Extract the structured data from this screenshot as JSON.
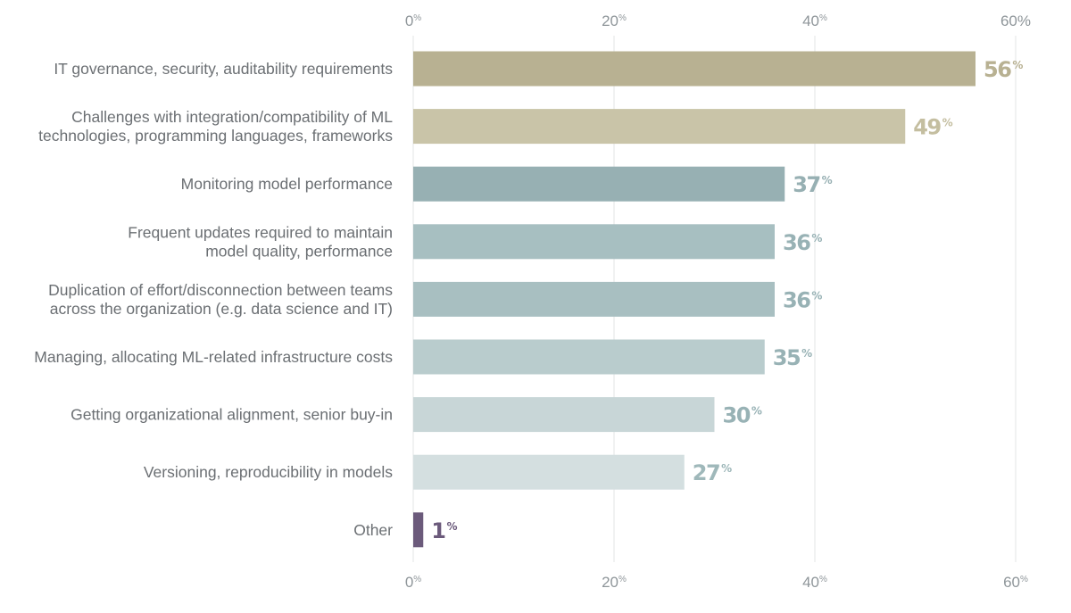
{
  "chart_data": {
    "type": "bar",
    "orientation": "horizontal",
    "categories": [
      [
        "IT governance, security, auditability requirements"
      ],
      [
        "Challenges with integration/compatibility of ML",
        "technologies, programming languages, frameworks"
      ],
      [
        "Monitoring model performance"
      ],
      [
        "Frequent updates required to maintain",
        "model quality, performance"
      ],
      [
        "Duplication of effort/disconnection between teams",
        "across the organization (e.g. data science and IT)"
      ],
      [
        "Managing, allocating ML-related infrastructure costs"
      ],
      [
        "Getting organizational alignment, senior buy-in"
      ],
      [
        "Versioning, reproducibility in models"
      ],
      [
        "Other"
      ]
    ],
    "values": [
      56,
      49,
      37,
      36,
      36,
      35,
      30,
      27,
      1
    ],
    "value_suffix": "%",
    "bar_colors": [
      "#b8b192",
      "#c9c4a8",
      "#97b0b3",
      "#a7bfc1",
      "#a8bfc1",
      "#b9cccd",
      "#c8d6d7",
      "#d4dfe0",
      "#6b5a7b"
    ],
    "label_colors": [
      "#b8b192",
      "#c4bea0",
      "#97b0b3",
      "#98b2b5",
      "#98b2b5",
      "#98b2b5",
      "#98b2b5",
      "#9fb8ba",
      "#6b5a7b"
    ],
    "xlim": [
      0,
      60
    ],
    "xticks": [
      0,
      20,
      40,
      60
    ],
    "xtick_suffix": "%",
    "grid": true,
    "title": "",
    "xlabel": "",
    "ylabel": ""
  }
}
